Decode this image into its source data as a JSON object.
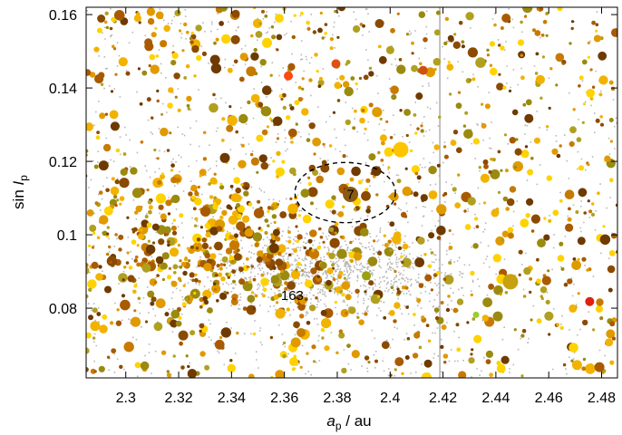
{
  "chart_data": {
    "type": "scatter",
    "title": "",
    "xlabel": {
      "main": "a",
      "sub": "p",
      "suffix": " / au"
    },
    "ylabel": {
      "prefix": "sin ",
      "main": "I",
      "sub": "p"
    },
    "xlim": [
      2.285,
      2.486
    ],
    "ylim": [
      0.061,
      0.162
    ],
    "xticks": [
      "2.3",
      "2.32",
      "2.34",
      "2.36",
      "2.38",
      "2.4",
      "2.42",
      "2.44",
      "2.46",
      "2.48"
    ],
    "yticks": [
      "0.08",
      "0.1",
      "0.12",
      "0.14",
      "0.16"
    ],
    "grid": false,
    "legend": "none",
    "background_color": "#b8b8b8",
    "marker_colors": [
      "#ffd200",
      "#f2b200",
      "#e09a00",
      "#c77a00",
      "#a85a00",
      "#8a4a00",
      "#6e3a00",
      "#9a8a10",
      "#b0a020"
    ],
    "dense_region": {
      "x": 2.38,
      "y": 0.09
    },
    "annotations": [
      {
        "text": "7",
        "x": 2.385,
        "y": 0.111
      },
      {
        "text": "163",
        "x": 2.363,
        "y": 0.0835
      }
    ],
    "ellipse": {
      "cx": 2.383,
      "cy": 0.1115,
      "rx": 0.019,
      "ry": 0.0082
    },
    "highlighted": [
      {
        "label": "7",
        "x": 2.385,
        "y": 0.111,
        "size": "large",
        "color": "#8a5a10"
      },
      {
        "x": 2.404,
        "y": 0.1232,
        "size": "large",
        "color": "#ffc400"
      },
      {
        "x": 2.4455,
        "y": 0.0872,
        "size": "large",
        "color": "#c8a010"
      },
      {
        "x": 2.391,
        "y": 0.0888,
        "size": "medium",
        "color": "#9aa010"
      },
      {
        "x": 2.4755,
        "y": 0.0818,
        "size": "medium",
        "color": "#e02010"
      },
      {
        "x": 2.3615,
        "y": 0.1433,
        "size": "medium",
        "color": "#ff4a10"
      },
      {
        "x": 2.3795,
        "y": 0.1466,
        "size": "medium",
        "color": "#e05010"
      },
      {
        "x": 2.4125,
        "y": 0.1448,
        "size": "medium",
        "color": "#d05010"
      },
      {
        "x": 2.2935,
        "y": 0.1065,
        "size": "medium",
        "color": "#ffd200"
      },
      {
        "x": 2.4325,
        "y": 0.0782,
        "size": "small",
        "color": "#9acc30"
      }
    ]
  }
}
